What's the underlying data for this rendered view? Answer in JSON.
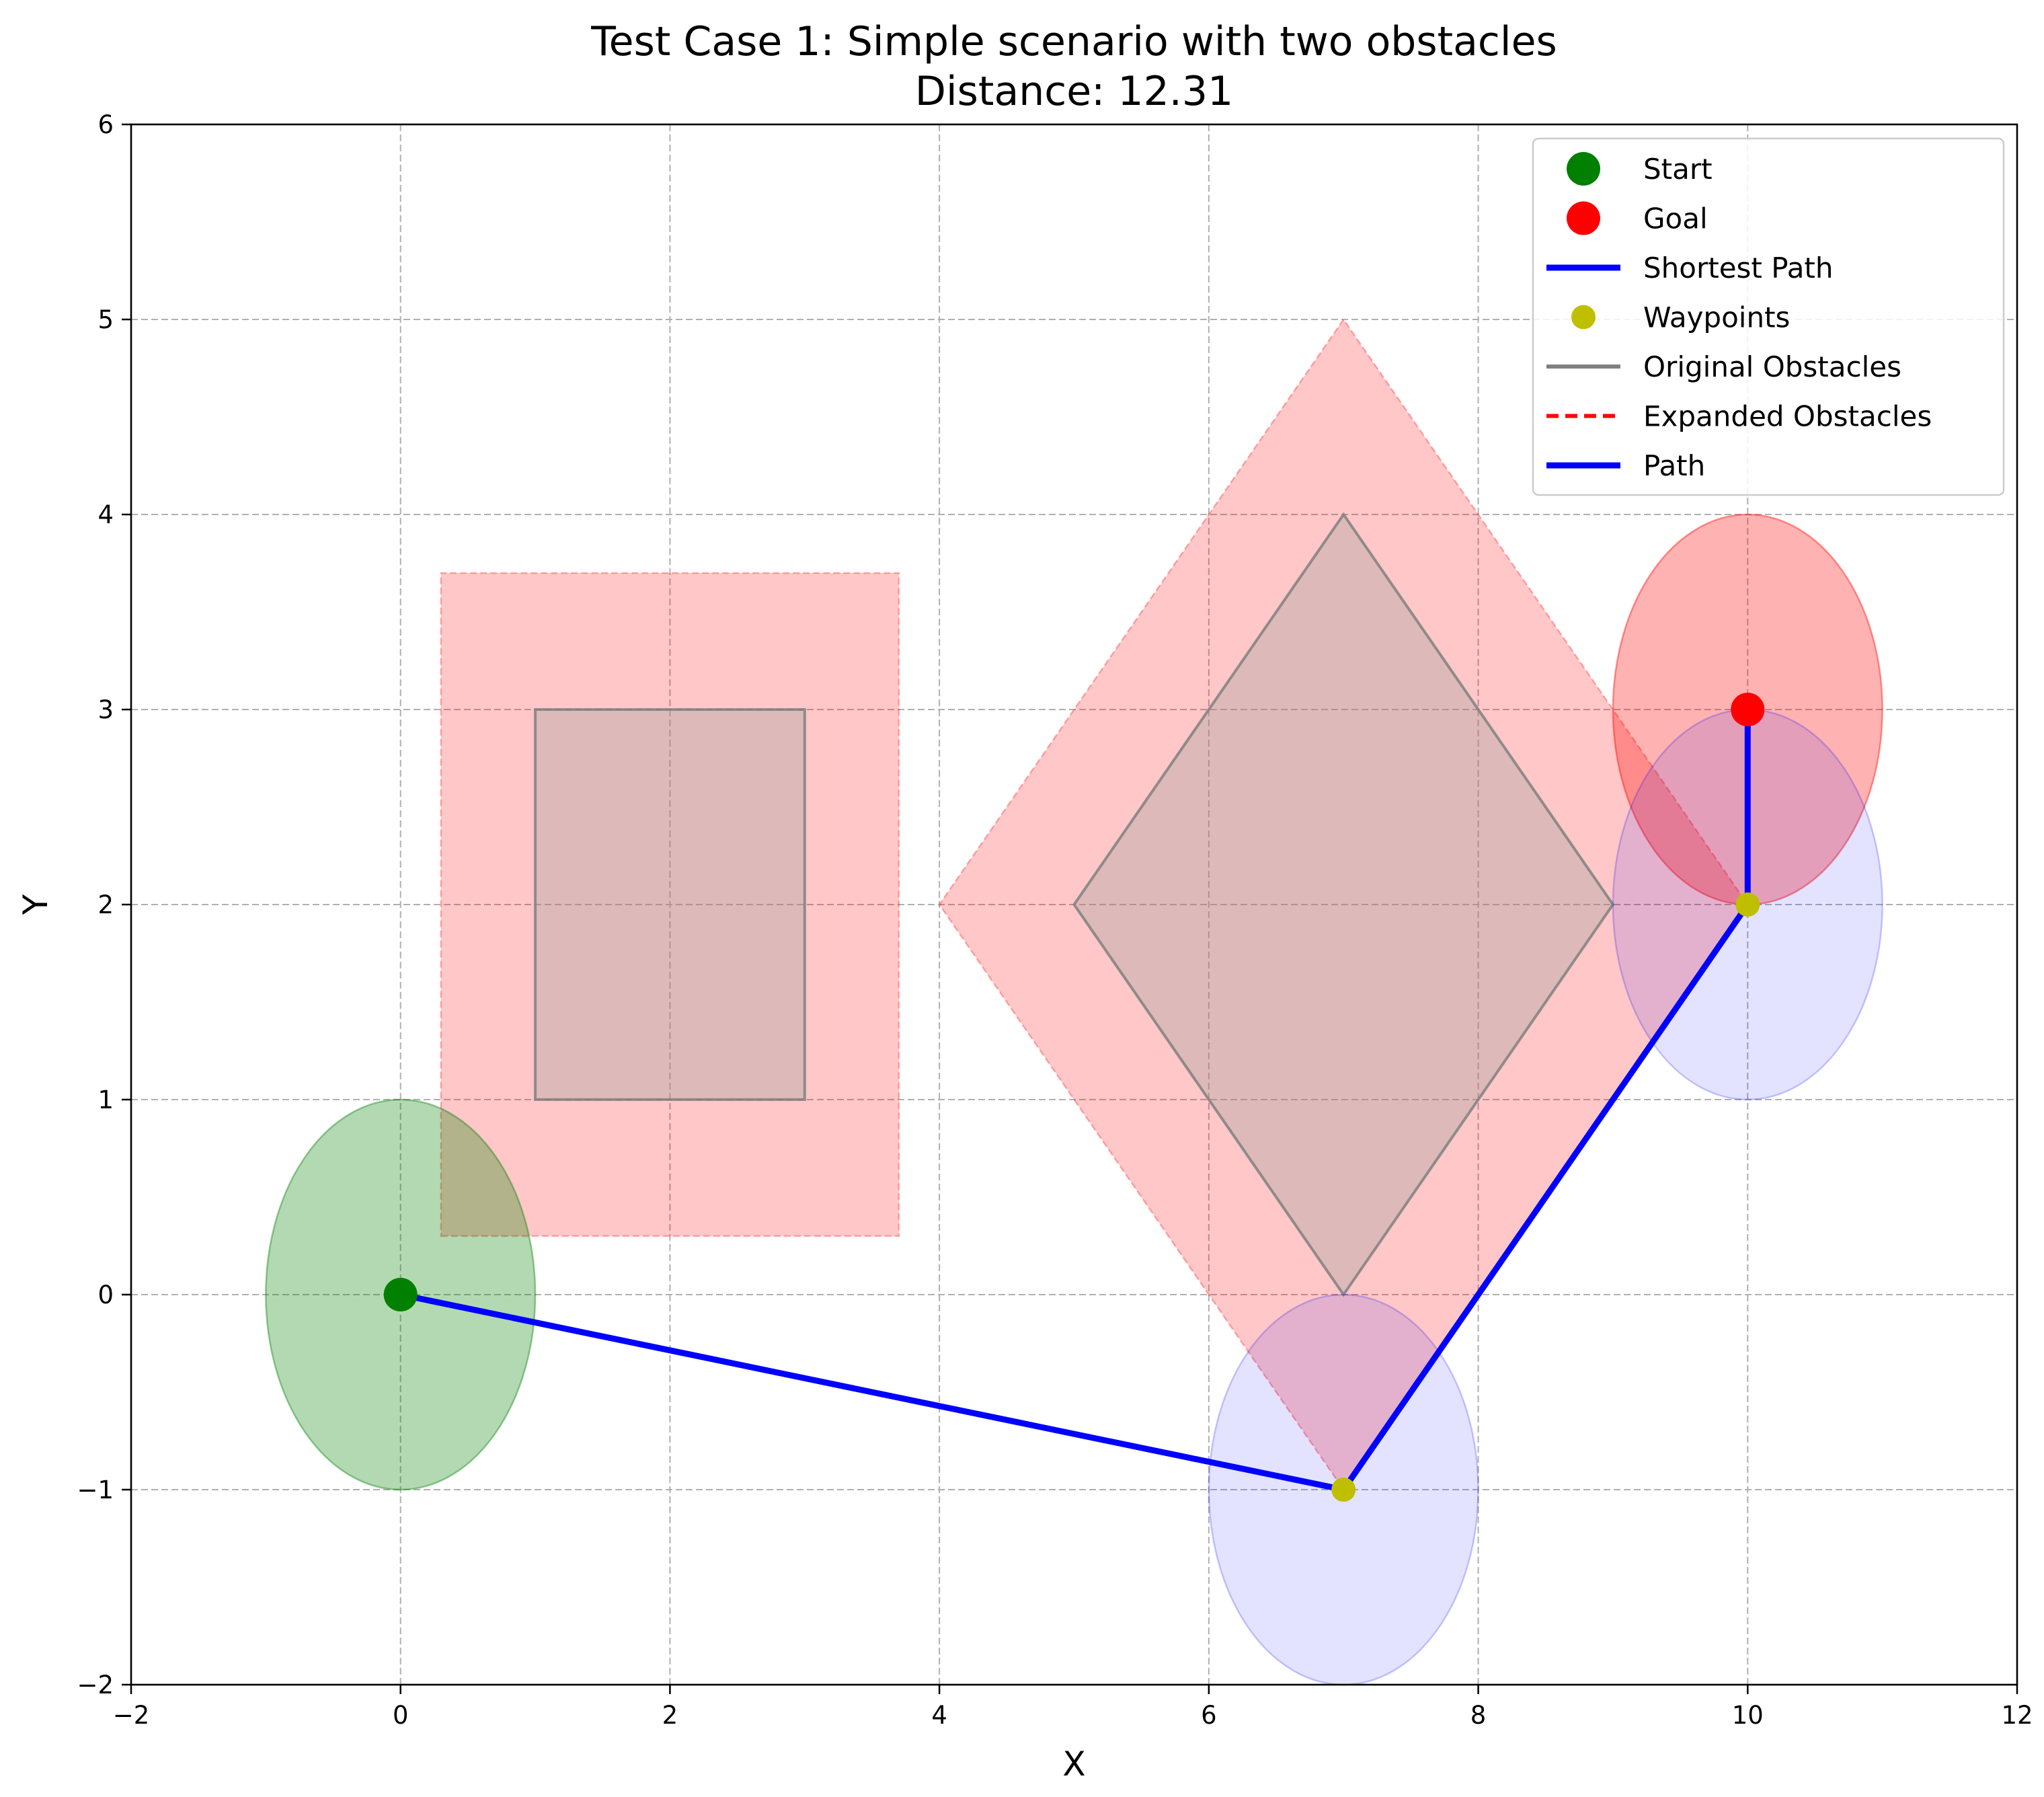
{
  "chart_data": {
    "type": "scatter",
    "title": "Test Case 1: Simple scenario with two obstacles",
    "subtitle": "Distance: 12.31",
    "xlabel": "X",
    "ylabel": "Y",
    "xlim": [
      -2,
      12
    ],
    "ylim": [
      -2,
      6
    ],
    "xticks": [
      -2,
      0,
      2,
      4,
      6,
      8,
      10,
      12
    ],
    "yticks": [
      -2,
      -1,
      0,
      1,
      2,
      3,
      4,
      5,
      6
    ],
    "xtick_labels": [
      "−2",
      "0",
      "2",
      "4",
      "6",
      "8",
      "10",
      "12"
    ],
    "ytick_labels": [
      "−2",
      "−1",
      "0",
      "1",
      "2",
      "3",
      "4",
      "5",
      "6"
    ],
    "grid": true,
    "legend_position": "top-right",
    "start": {
      "x": 0,
      "y": 0
    },
    "goal": {
      "x": 10,
      "y": 3
    },
    "path": [
      {
        "x": 0,
        "y": 0
      },
      {
        "x": 7,
        "y": -1
      },
      {
        "x": 10,
        "y": 2
      },
      {
        "x": 10,
        "y": 3
      }
    ],
    "waypoints": [
      {
        "x": 7,
        "y": -1
      },
      {
        "x": 10,
        "y": 2
      }
    ],
    "original_obstacles": [
      {
        "shape": "rectangle",
        "points": [
          [
            1,
            1
          ],
          [
            3,
            1
          ],
          [
            3,
            3
          ],
          [
            1,
            3
          ]
        ]
      },
      {
        "shape": "diamond",
        "points": [
          [
            7,
            0
          ],
          [
            9,
            2
          ],
          [
            7,
            4
          ],
          [
            5,
            2
          ]
        ]
      }
    ],
    "expanded_obstacles": [
      {
        "shape": "rectangle",
        "points": [
          [
            0.3,
            0.3
          ],
          [
            3.7,
            0.3
          ],
          [
            3.7,
            3.7
          ],
          [
            0.3,
            3.7
          ]
        ]
      },
      {
        "shape": "diamond",
        "points": [
          [
            7,
            -1
          ],
          [
            10,
            2
          ],
          [
            7,
            5
          ],
          [
            4,
            2
          ]
        ]
      }
    ],
    "regions": [
      {
        "kind": "start",
        "cx": 0,
        "cy": 0,
        "r": 1,
        "color": "#008000"
      },
      {
        "kind": "goal",
        "cx": 10,
        "cy": 3,
        "r": 1,
        "color": "#ff0000"
      },
      {
        "kind": "waypoint",
        "cx": 7,
        "cy": -1,
        "r": 1,
        "color": "#0000ff"
      },
      {
        "kind": "waypoint",
        "cx": 10,
        "cy": 2,
        "r": 1,
        "color": "#0000ff"
      }
    ],
    "colors": {
      "start": "#008000",
      "goal": "#ff0000",
      "path": "#0000ff",
      "waypoint": "#bfbf00",
      "original_obstacle_fill": "#a0a0a0",
      "original_obstacle_edge": "#808080",
      "expanded_obstacle": "#ff0000",
      "grid": "#b0b0b0"
    },
    "legend": [
      {
        "label": "Start",
        "style": "marker",
        "color": "#008000"
      },
      {
        "label": "Goal",
        "style": "marker",
        "color": "#ff0000"
      },
      {
        "label": "Shortest Path",
        "style": "line",
        "color": "#0000ff"
      },
      {
        "label": "Waypoints",
        "style": "small-marker",
        "color": "#bfbf00"
      },
      {
        "label": "Original Obstacles",
        "style": "line",
        "color": "#808080"
      },
      {
        "label": "Expanded Obstacles",
        "style": "dashed",
        "color": "#ff0000"
      },
      {
        "label": "Path",
        "style": "line",
        "color": "#0000ff"
      }
    ]
  }
}
